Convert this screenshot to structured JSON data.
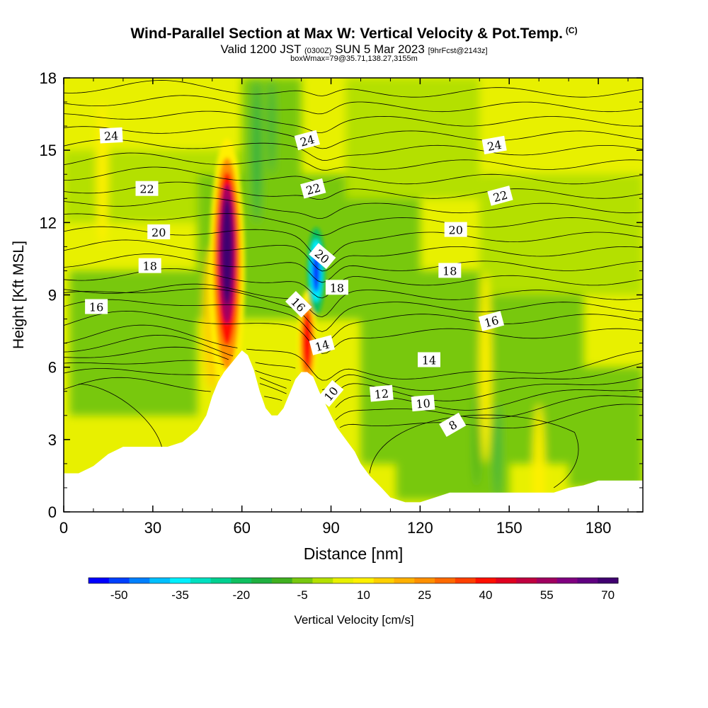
{
  "titles": {
    "main": "Wind-Parallel Section at Max W: Vertical Velocity & Pot.Temp.",
    "copyright": "(C)",
    "valid_a": "Valid 1200 JST",
    "valid_z": "(0300Z)",
    "valid_b": "SUN 5 Mar 2023",
    "fcst": "[9hrFcst@2143z]",
    "boxwmax": "boxWmax=79@35.71,138.27,3155m"
  },
  "chart_data": {
    "type": "heatmap",
    "title": "Wind-Parallel Section at Max W: Vertical Velocity & Pot.Temp.",
    "xlabel": "Distance [nm]",
    "ylabel": "Height [Kft MSL]",
    "xlim": [
      0,
      195
    ],
    "ylim": [
      0,
      18
    ],
    "xticks": [
      0,
      30,
      60,
      90,
      120,
      150,
      180
    ],
    "yticks": [
      0,
      3,
      6,
      9,
      12,
      15,
      18
    ],
    "colorbar": {
      "label": "Vertical Velocity [cm/s]",
      "min": -55,
      "max": 75,
      "step": 5,
      "tick_values": [
        -50,
        -35,
        -20,
        -5,
        10,
        25,
        40,
        55,
        70
      ],
      "colors": [
        "#0000ff",
        "#0040ff",
        "#0080ff",
        "#00c0ff",
        "#00f0ff",
        "#00e0c0",
        "#00d090",
        "#10c060",
        "#20b040",
        "#40b020",
        "#78c810",
        "#b4e000",
        "#e8f000",
        "#fff000",
        "#ffd000",
        "#ffb000",
        "#ff9000",
        "#ff6a00",
        "#ff4000",
        "#ff1000",
        "#e00020",
        "#c00040",
        "#a00060",
        "#800080",
        "#600080",
        "#400070"
      ]
    },
    "terrain_kft": [
      [
        0,
        1.6
      ],
      [
        5,
        1.6
      ],
      [
        10,
        1.9
      ],
      [
        15,
        2.4
      ],
      [
        20,
        2.7
      ],
      [
        25,
        2.7
      ],
      [
        30,
        2.7
      ],
      [
        35,
        2.7
      ],
      [
        40,
        2.9
      ],
      [
        45,
        3.4
      ],
      [
        48,
        4.0
      ],
      [
        50,
        4.8
      ],
      [
        52,
        5.4
      ],
      [
        54,
        5.8
      ],
      [
        56,
        6.1
      ],
      [
        58,
        6.4
      ],
      [
        60,
        6.7
      ],
      [
        62,
        6.5
      ],
      [
        64,
        5.9
      ],
      [
        66,
        5.0
      ],
      [
        68,
        4.3
      ],
      [
        70,
        4.0
      ],
      [
        72,
        4.0
      ],
      [
        74,
        4.3
      ],
      [
        76,
        4.9
      ],
      [
        78,
        5.5
      ],
      [
        80,
        5.8
      ],
      [
        82,
        5.8
      ],
      [
        84,
        5.6
      ],
      [
        86,
        5.0
      ],
      [
        88,
        4.5
      ],
      [
        90,
        4.0
      ],
      [
        92,
        3.5
      ],
      [
        95,
        3.0
      ],
      [
        98,
        2.5
      ],
      [
        100,
        2.0
      ],
      [
        103,
        1.5
      ],
      [
        107,
        1.0
      ],
      [
        110,
        0.6
      ],
      [
        115,
        0.4
      ],
      [
        120,
        0.4
      ],
      [
        125,
        0.6
      ],
      [
        130,
        0.8
      ],
      [
        135,
        0.8
      ],
      [
        140,
        0.8
      ],
      [
        145,
        0.8
      ],
      [
        150,
        0.8
      ],
      [
        155,
        0.8
      ],
      [
        160,
        0.8
      ],
      [
        165,
        0.8
      ],
      [
        170,
        1.0
      ],
      [
        175,
        1.1
      ],
      [
        180,
        1.3
      ],
      [
        185,
        1.3
      ],
      [
        190,
        1.3
      ],
      [
        195,
        1.3
      ]
    ],
    "updraft_cores": [
      {
        "x_nm": 55,
        "height_kft": 10.8,
        "w_cm_s": 79
      },
      {
        "x_nm": 82,
        "height_kft": 7.0,
        "w_cm_s": 45
      }
    ],
    "downdraft_cores": [
      {
        "x_nm": 85,
        "height_kft": 10.0,
        "w_cm_s": -45
      }
    ],
    "contours_pot_temp": {
      "units": "deg C",
      "levels": [
        8,
        10,
        12,
        14,
        16,
        18,
        20,
        22,
        24
      ],
      "labels": [
        {
          "text": "24",
          "x": 16,
          "y": 15.6,
          "angle": -3
        },
        {
          "text": "22",
          "x": 28,
          "y": 13.4,
          "angle": 0
        },
        {
          "text": "20",
          "x": 32,
          "y": 11.6,
          "angle": 0
        },
        {
          "text": "18",
          "x": 29,
          "y": 10.2,
          "angle": 0
        },
        {
          "text": "16",
          "x": 11,
          "y": 8.5,
          "angle": 0
        },
        {
          "text": "24",
          "x": 82,
          "y": 15.4,
          "angle": -15
        },
        {
          "text": "22",
          "x": 84,
          "y": 13.4,
          "angle": -15
        },
        {
          "text": "20",
          "x": 87,
          "y": 10.6,
          "angle": 40
        },
        {
          "text": "18",
          "x": 92,
          "y": 9.3,
          "angle": 0
        },
        {
          "text": "16",
          "x": 79,
          "y": 8.6,
          "angle": 45
        },
        {
          "text": "14",
          "x": 87,
          "y": 6.9,
          "angle": -15
        },
        {
          "text": "10",
          "x": 90,
          "y": 4.9,
          "angle": -50
        },
        {
          "text": "12",
          "x": 107,
          "y": 4.9,
          "angle": -5
        },
        {
          "text": "10",
          "x": 121,
          "y": 4.5,
          "angle": -5
        },
        {
          "text": "8",
          "x": 131,
          "y": 3.6,
          "angle": -30
        },
        {
          "text": "14",
          "x": 123,
          "y": 6.3,
          "angle": 0
        },
        {
          "text": "16",
          "x": 144,
          "y": 7.9,
          "angle": -15
        },
        {
          "text": "18",
          "x": 130,
          "y": 10.0,
          "angle": 0
        },
        {
          "text": "20",
          "x": 132,
          "y": 11.7,
          "angle": 0
        },
        {
          "text": "22",
          "x": 147,
          "y": 13.1,
          "angle": -15
        },
        {
          "text": "24",
          "x": 145,
          "y": 15.2,
          "angle": -10
        }
      ]
    }
  }
}
